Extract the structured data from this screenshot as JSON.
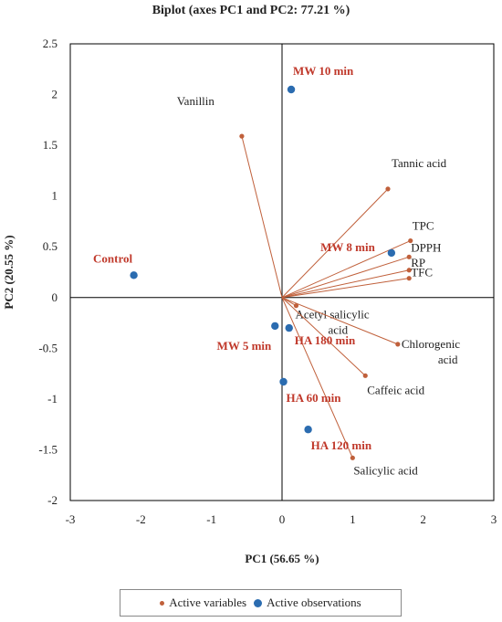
{
  "chart_data": {
    "type": "scatter",
    "title": "Biplot (axes PC1 and PC2: 77.21 %)",
    "xlabel": "PC1 (56.65 %)",
    "ylabel": "PC2 (20.55 %)",
    "xlim": [
      -3,
      3
    ],
    "ylim": [
      -2,
      2.5
    ],
    "xticks": [
      "-3",
      "-2",
      "-1",
      "0",
      "1",
      "2",
      "3"
    ],
    "yticks": [
      "-2",
      "-1.5",
      "-1",
      "-0.5",
      "0",
      "0.5",
      "1",
      "1.5",
      "2",
      "2.5"
    ],
    "legend_position": "bottom",
    "colors": {
      "variables": "#c0603b",
      "observations": "#2b6cb0",
      "obs_label": "#c0392b"
    },
    "series": [
      {
        "name": "Active variables",
        "type": "vectors",
        "points": [
          {
            "label": "Vanillin",
            "x": -0.57,
            "y": 1.59
          },
          {
            "label": "Tannic acid",
            "x": 1.5,
            "y": 1.07
          },
          {
            "label": "TPC",
            "x": 1.82,
            "y": 0.56
          },
          {
            "label": "DPPH",
            "x": 1.8,
            "y": 0.4
          },
          {
            "label": "RP",
            "x": 1.8,
            "y": 0.27
          },
          {
            "label": "TFC",
            "x": 1.8,
            "y": 0.19
          },
          {
            "label": "Acetyl salicylic acid",
            "x": 0.2,
            "y": -0.08
          },
          {
            "label": "Chlorogenic acid",
            "x": 1.64,
            "y": -0.46
          },
          {
            "label": "Caffeic acid",
            "x": 1.18,
            "y": -0.77
          },
          {
            "label": "Salicylic acid",
            "x": 1.0,
            "y": -1.58
          }
        ]
      },
      {
        "name": "Active observations",
        "type": "points",
        "points": [
          {
            "label": "MW 10 min",
            "x": 0.13,
            "y": 2.05
          },
          {
            "label": "Control",
            "x": -2.1,
            "y": 0.22
          },
          {
            "label": "MW 8 min",
            "x": 1.55,
            "y": 0.44
          },
          {
            "label": "MW 5 min",
            "x": -0.1,
            "y": -0.28
          },
          {
            "label": "HA 180 min",
            "x": 0.1,
            "y": -0.3
          },
          {
            "label": "HA 60 min",
            "x": 0.02,
            "y": -0.83
          },
          {
            "label": "HA 120 min",
            "x": 0.37,
            "y": -1.3
          }
        ]
      }
    ]
  }
}
